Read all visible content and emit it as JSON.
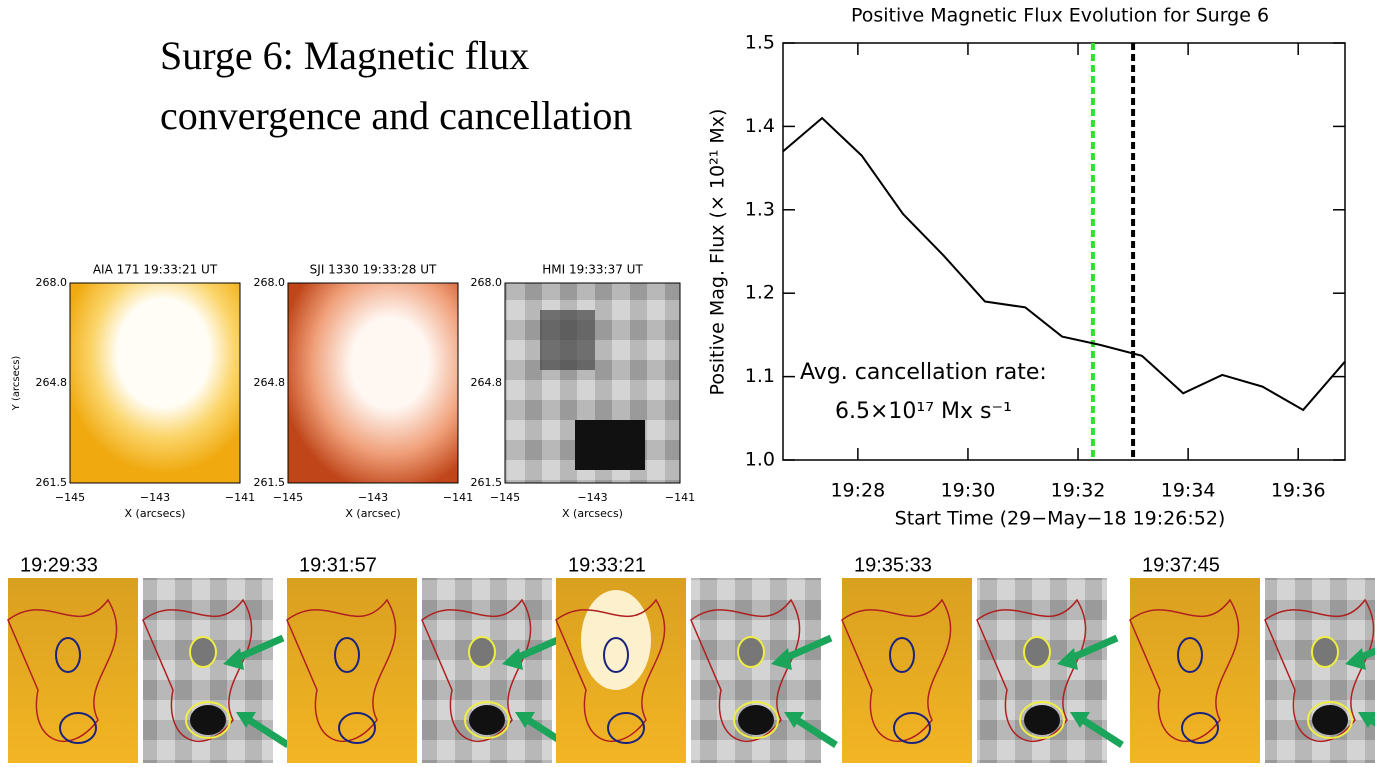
{
  "heading": {
    "line1": "Surge 6: Magnetic flux",
    "line2": "convergence and cancellation"
  },
  "panels": [
    {
      "title": "AIA 171  19:33:21 UT",
      "xlabel": "X (arcsecs)",
      "ylabel": "Y (arcsecs)",
      "yticks": [
        "268.0",
        "264.8",
        "261.5"
      ],
      "xticks": [
        "−145",
        "−143",
        "−141"
      ]
    },
    {
      "title": "SJI 1330  19:33:28 UT",
      "xlabel": "X (arcsec)",
      "yticks": [
        "268.0",
        "264.8",
        "261.5"
      ],
      "xticks": [
        "−145",
        "−143",
        "−141"
      ]
    },
    {
      "title": "HMI  19:33:37 UT",
      "xlabel": "X (arcsecs)",
      "yticks": [
        "268.0",
        "264.8",
        "261.5"
      ],
      "xticks": [
        "−145",
        "−143",
        "−141"
      ]
    }
  ],
  "timestamps": [
    "19:29:33",
    "19:31:57",
    "19:33:21",
    "19:35:33",
    "19:37:45"
  ],
  "chart_data": {
    "type": "line",
    "title": "Positive Magnetic Flux Evolution for Surge 6",
    "xlabel": "Start Time (29−May−18 19:26:52)",
    "ylabel": "Positive Mag. Flux (× 10²¹ Mx)",
    "annotations": [
      "Avg. cancellation rate:",
      "6.5×10¹⁷ Mx s⁻¹"
    ],
    "x": [
      26.64,
      27.35,
      28.07,
      28.82,
      29.56,
      30.31,
      31.04,
      31.71,
      32.4,
      33.16,
      33.91,
      34.62,
      35.35,
      36.09,
      36.85
    ],
    "values": [
      1.37,
      1.41,
      1.365,
      1.295,
      1.245,
      1.19,
      1.183,
      1.148,
      1.138,
      1.125,
      1.08,
      1.102,
      1.088,
      1.06,
      1.118
    ],
    "color": "#000000",
    "vlines": [
      {
        "x": 32.27,
        "color": "#33dd33"
      },
      {
        "x": 33.0,
        "color": "#000000"
      }
    ],
    "xlim": [
      26.64,
      36.85
    ],
    "ylim": [
      1.0,
      1.5
    ],
    "xticks": [
      {
        "value": 28,
        "label": "19:28"
      },
      {
        "value": 30,
        "label": "19:30"
      },
      {
        "value": 32,
        "label": "19:32"
      },
      {
        "value": 34,
        "label": "19:34"
      },
      {
        "value": 36,
        "label": "19:36"
      }
    ],
    "yticks": [
      {
        "value": 1,
        "label": "1.0"
      },
      1.1,
      1.2,
      1.3,
      1.4,
      1.5
    ]
  }
}
